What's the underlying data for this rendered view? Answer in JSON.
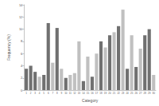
{
  "chart_data": {
    "type": "bar",
    "x_label": "Category",
    "y_label": "Frequency (%)",
    "categories": [
      "1",
      "2",
      "3",
      "4",
      "5",
      "6",
      "7",
      "8",
      "9",
      "10",
      "11",
      "12",
      "13",
      "14",
      "15",
      "16",
      "17",
      "18",
      "19",
      "20",
      "21",
      "22",
      "23",
      "24",
      "25",
      "26",
      "27",
      "28",
      "29",
      "30"
    ],
    "values": [
      3.5,
      4.0,
      3.0,
      2.2,
      2.5,
      11.0,
      4.5,
      10.2,
      3.5,
      2.0,
      2.5,
      2.8,
      8.0,
      1.5,
      5.5,
      2.2,
      6.0,
      8.0,
      7.0,
      9.0,
      9.5,
      10.5,
      13.2,
      3.5,
      9.0,
      3.8,
      6.8,
      9.0,
      10.0,
      2.5
    ],
    "colors": [
      "#707070",
      "#707070",
      "#707070",
      "#c0c0c0",
      "#707070",
      "#707070",
      "#c0c0c0",
      "#707070",
      "#c0c0c0",
      "#707070",
      "#c0c0c0",
      "#c0c0c0",
      "#c0c0c0",
      "#707070",
      "#c0c0c0",
      "#707070",
      "#c0c0c0",
      "#707070",
      "#c0c0c0",
      "#707070",
      "#c0c0c0",
      "#707070",
      "#c0c0c0",
      "#707070",
      "#c0c0c0",
      "#707070",
      "#c0c0c0",
      "#707070",
      "#707070",
      "#c0c0c0"
    ],
    "ylim": [
      0,
      14
    ],
    "yticks": [
      0,
      2,
      4,
      6,
      8,
      10,
      12,
      14
    ],
    "grid": false
  }
}
